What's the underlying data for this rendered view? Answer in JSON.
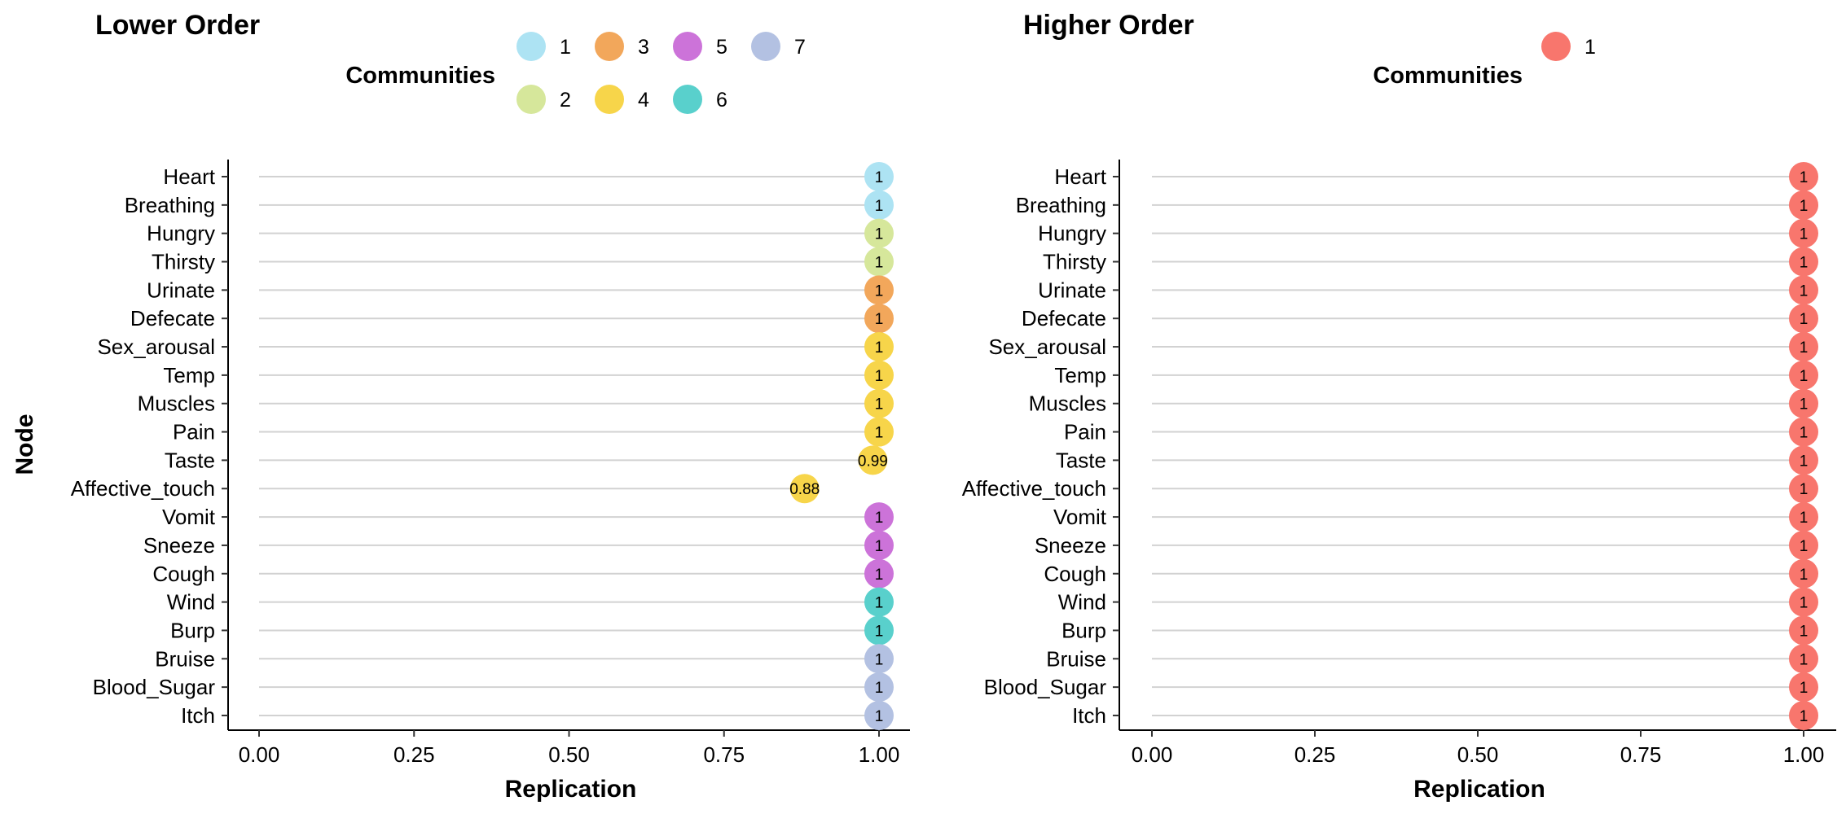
{
  "y_axis_label": "Node",
  "chart_data": [
    {
      "type": "scatter",
      "title": "Lower Order",
      "xlabel": "Replication",
      "ylabel": "Node",
      "xlim": [
        0,
        1
      ],
      "x_ticks": [
        "0.00",
        "0.25",
        "0.50",
        "0.75",
        "1.00"
      ],
      "legend": {
        "title": "Communities",
        "placement": "top",
        "entries": [
          {
            "label": "1",
            "color": "#ADE3F3"
          },
          {
            "label": "2",
            "color": "#D6E79B"
          },
          {
            "label": "3",
            "color": "#F2A75B"
          },
          {
            "label": "4",
            "color": "#F7D54A"
          },
          {
            "label": "5",
            "color": "#CC73D9"
          },
          {
            "label": "6",
            "color": "#59D0CC"
          },
          {
            "label": "7",
            "color": "#B3C1E2"
          }
        ]
      },
      "categories": [
        "Heart",
        "Breathing",
        "Hungry",
        "Thirsty",
        "Urinate",
        "Defecate",
        "Sex_arousal",
        "Temp",
        "Muscles",
        "Pain",
        "Taste",
        "Affective_touch",
        "Vomit",
        "Sneeze",
        "Cough",
        "Wind",
        "Burp",
        "Bruise",
        "Blood_Sugar",
        "Itch"
      ],
      "values": [
        1,
        1,
        1,
        1,
        1,
        1,
        1,
        1,
        1,
        1,
        0.99,
        0.88,
        1,
        1,
        1,
        1,
        1,
        1,
        1,
        1
      ],
      "point_labels": [
        "1",
        "1",
        "1",
        "1",
        "1",
        "1",
        "1",
        "1",
        "1",
        "1",
        "0.99",
        "0.88",
        "1",
        "1",
        "1",
        "1",
        "1",
        "1",
        "1",
        "1"
      ],
      "communities": [
        "1",
        "1",
        "2",
        "2",
        "3",
        "3",
        "4",
        "4",
        "4",
        "4",
        "4",
        "4",
        "5",
        "5",
        "5",
        "6",
        "6",
        "7",
        "7",
        "7"
      ],
      "grid": "horizontal"
    },
    {
      "type": "scatter",
      "title": "Higher Order",
      "xlabel": "Replication",
      "ylabel": "",
      "xlim": [
        0,
        1
      ],
      "x_ticks": [
        "0.00",
        "0.25",
        "0.50",
        "0.75",
        "1.00"
      ],
      "legend": {
        "title": "Communities",
        "placement": "top",
        "entries": [
          {
            "label": "1",
            "color": "#F8766D"
          }
        ]
      },
      "categories": [
        "Heart",
        "Breathing",
        "Hungry",
        "Thirsty",
        "Urinate",
        "Defecate",
        "Sex_arousal",
        "Temp",
        "Muscles",
        "Pain",
        "Taste",
        "Affective_touch",
        "Vomit",
        "Sneeze",
        "Cough",
        "Wind",
        "Burp",
        "Bruise",
        "Blood_Sugar",
        "Itch"
      ],
      "values": [
        1,
        1,
        1,
        1,
        1,
        1,
        1,
        1,
        1,
        1,
        1,
        1,
        1,
        1,
        1,
        1,
        1,
        1,
        1,
        1
      ],
      "point_labels": [
        "1",
        "1",
        "1",
        "1",
        "1",
        "1",
        "1",
        "1",
        "1",
        "1",
        "1",
        "1",
        "1",
        "1",
        "1",
        "1",
        "1",
        "1",
        "1",
        "1"
      ],
      "communities": [
        "1",
        "1",
        "1",
        "1",
        "1",
        "1",
        "1",
        "1",
        "1",
        "1",
        "1",
        "1",
        "1",
        "1",
        "1",
        "1",
        "1",
        "1",
        "1",
        "1"
      ],
      "grid": "horizontal"
    }
  ]
}
